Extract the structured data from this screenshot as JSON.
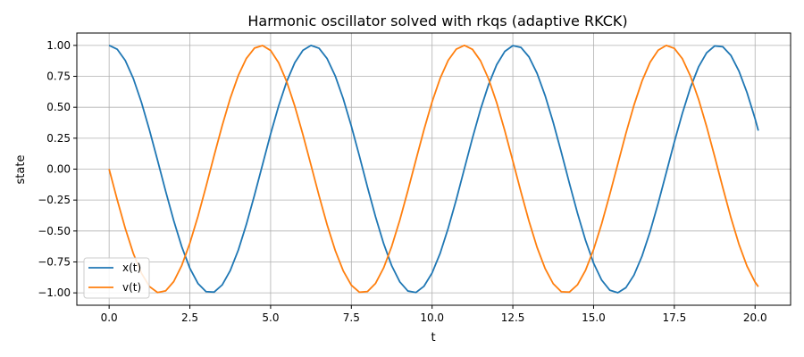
{
  "chart_data": {
    "type": "line",
    "title": "Harmonic oscillator solved with rkqs (adaptive RKCK)",
    "xlabel": "t",
    "ylabel": "state",
    "xlim": [
      -1.0,
      21.1
    ],
    "ylim": [
      -1.1,
      1.1
    ],
    "xticks": [
      0.0,
      2.5,
      5.0,
      7.5,
      10.0,
      12.5,
      15.0,
      17.5,
      20.0
    ],
    "xtick_labels": [
      "0.0",
      "2.5",
      "5.0",
      "7.5",
      "10.0",
      "12.5",
      "15.0",
      "17.5",
      "20.0"
    ],
    "yticks": [
      1.0,
      0.75,
      0.5,
      0.25,
      0.0,
      -0.25,
      -0.5,
      -0.75,
      -1.0
    ],
    "ytick_labels": [
      "1.00",
      "0.75",
      "0.50",
      "0.25",
      "0.00",
      "−0.25",
      "−0.50",
      "−0.75",
      "−1.00"
    ],
    "grid": true,
    "legend_position": "lower-left",
    "x": [
      0.0,
      0.25,
      0.5,
      0.75,
      1.0,
      1.25,
      1.5,
      1.75,
      2.0,
      2.25,
      2.5,
      2.75,
      3.0,
      3.25,
      3.5,
      3.75,
      4.0,
      4.25,
      4.5,
      4.75,
      5.0,
      5.25,
      5.5,
      5.75,
      6.0,
      6.25,
      6.5,
      6.75,
      7.0,
      7.25,
      7.5,
      7.75,
      8.0,
      8.25,
      8.5,
      8.75,
      9.0,
      9.25,
      9.5,
      9.75,
      10.0,
      10.25,
      10.5,
      10.75,
      11.0,
      11.25,
      11.5,
      11.75,
      12.0,
      12.25,
      12.5,
      12.75,
      13.0,
      13.25,
      13.5,
      13.75,
      14.0,
      14.25,
      14.5,
      14.75,
      15.0,
      15.25,
      15.5,
      15.75,
      16.0,
      16.25,
      16.5,
      16.75,
      17.0,
      17.25,
      17.5,
      17.75,
      18.0,
      18.25,
      18.5,
      18.75,
      19.0,
      19.25,
      19.5,
      19.75,
      20.0,
      20.1
    ],
    "series": [
      {
        "name": "x(t)",
        "color": "#1f77b4",
        "values": [
          1.0,
          0.969,
          0.878,
          0.732,
          0.54,
          0.315,
          0.071,
          -0.178,
          -0.416,
          -0.628,
          -0.801,
          -0.924,
          -0.99,
          -0.994,
          -0.936,
          -0.82,
          -0.654,
          -0.446,
          -0.211,
          0.036,
          0.284,
          0.512,
          0.709,
          0.861,
          0.96,
          1.0,
          0.977,
          0.893,
          0.754,
          0.568,
          0.347,
          0.105,
          -0.146,
          -0.386,
          -0.602,
          -0.781,
          -0.911,
          -0.985,
          -0.997,
          -0.946,
          -0.839,
          -0.68,
          -0.476,
          -0.245,
          0.004,
          0.251,
          0.483,
          0.684,
          0.844,
          0.951,
          0.998,
          0.984,
          0.907,
          0.774,
          0.594,
          0.378,
          0.137,
          -0.113,
          -0.354,
          -0.575,
          -0.76,
          -0.897,
          -0.978,
          -0.999,
          -0.958,
          -0.857,
          -0.703,
          -0.505,
          -0.276,
          -0.029,
          0.219,
          0.452,
          0.66,
          0.826,
          0.94,
          0.996,
          0.989,
          0.92,
          0.793,
          0.619,
          0.408,
          0.311
        ]
      },
      {
        "name": "v(t)",
        "color": "#ff7f0e",
        "values": [
          0.0,
          -0.247,
          -0.479,
          -0.682,
          -0.841,
          -0.949,
          -0.997,
          -0.984,
          -0.909,
          -0.778,
          -0.598,
          -0.382,
          -0.141,
          0.108,
          0.351,
          0.572,
          0.757,
          0.895,
          0.978,
          0.999,
          0.959,
          0.859,
          0.706,
          0.508,
          0.279,
          0.033,
          -0.215,
          -0.45,
          -0.657,
          -0.823,
          -0.938,
          -0.995,
          -0.989,
          -0.923,
          -0.798,
          -0.624,
          -0.412,
          -0.174,
          0.075,
          0.319,
          0.544,
          0.734,
          0.88,
          0.97,
          1.0,
          0.968,
          0.875,
          0.728,
          0.537,
          0.311,
          0.066,
          -0.183,
          -0.42,
          -0.632,
          -0.804,
          -0.926,
          -0.991,
          -0.994,
          -0.935,
          -0.818,
          -0.65,
          -0.442,
          -0.206,
          0.041,
          0.288,
          0.516,
          0.712,
          0.864,
          0.961,
          1.0,
          0.976,
          0.892,
          0.751,
          0.565,
          0.344,
          0.101,
          -0.149,
          -0.39,
          -0.606,
          -0.784,
          -0.913,
          -0.95
        ]
      }
    ]
  }
}
